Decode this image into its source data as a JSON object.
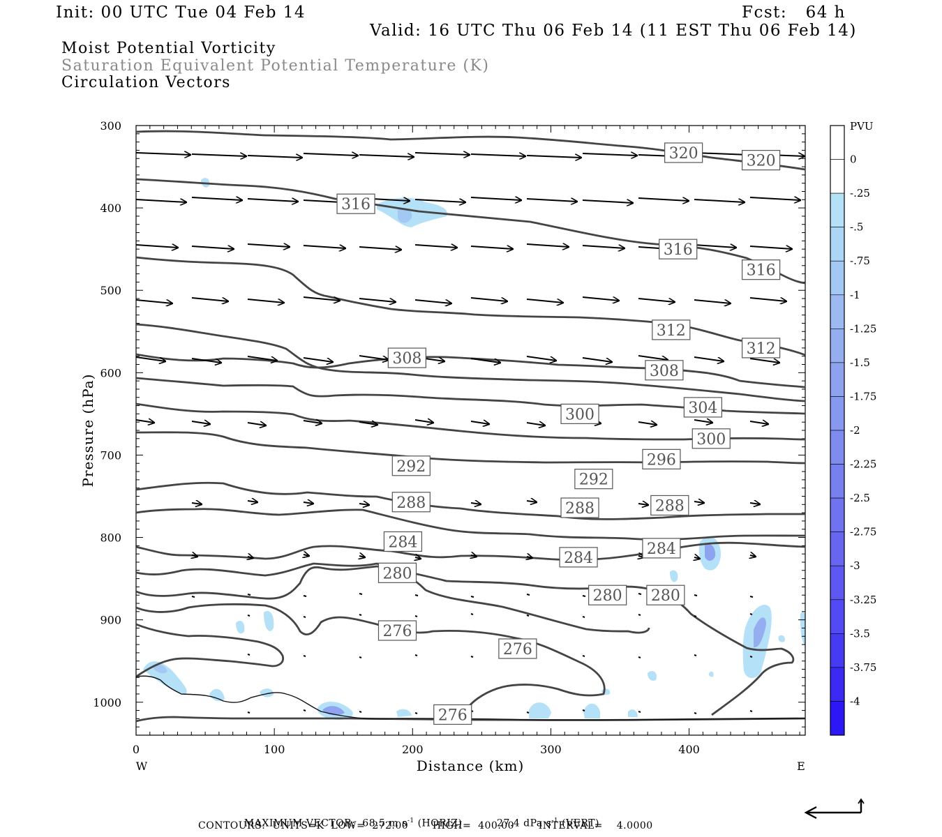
{
  "header": {
    "init": "Init: 00 UTC Tue 04 Feb 14",
    "fcst": "Fcst:   64 h",
    "valid": "Valid: 16 UTC Thu 06 Feb 14 (11 EST Thu 06 Feb 14)"
  },
  "titles": {
    "line1": "Moist Potential Vorticity",
    "line2": "Saturation Equivalent Potential Temperature (K)",
    "line3": "Circulation Vectors"
  },
  "footer": {
    "max_vector_label": "MAXIMUM VECTOR:",
    "max_horiz": "68.5 m s",
    "horiz_unit": "(HORIZ)",
    "max_vert": "27.4 dPa s",
    "vert_unit": "(VERT)",
    "exp": "-1",
    "contours": "CONTOURS:  UNITS=K  LOW=  272.00       HIGH=  400.00       INTERVAL=    4.0000"
  },
  "chart_data": {
    "type": "cross-section",
    "xlabel": "Distance (km)",
    "ylabel": "Pressure (hPa)",
    "x_left_label": "W",
    "x_right_label": "E",
    "xlim": [
      0,
      484
    ],
    "ylim": [
      300,
      1040
    ],
    "x_ticks": [
      "0",
      "100",
      "200",
      "300",
      "400"
    ],
    "y_ticks": [
      "300",
      "400",
      "500",
      "600",
      "700",
      "800",
      "900",
      "1000"
    ],
    "colorbar": {
      "unit": "PVU",
      "labels": [
        "0",
        "-.25",
        "-.5",
        "-.75",
        "-1",
        "-1.25",
        "-1.5",
        "-1.75",
        "-2",
        "-2.25",
        "-2.5",
        "-2.75",
        "-3",
        "-3.25",
        "-3.5",
        "-3.75",
        "-4"
      ],
      "colors": [
        "#ffffff",
        "#ffffff",
        "#b4e1f7",
        "#acd6f5",
        "#a3c8f3",
        "#9cbaf1",
        "#95aeef",
        "#8ea3ef",
        "#8698ef",
        "#7f8cef",
        "#7780ef",
        "#6f73ef",
        "#6666f0",
        "#5c58f1",
        "#524af2",
        "#463af3",
        "#3a2af4",
        "#2c18f6"
      ]
    },
    "contour_labels": [
      {
        "value": "320",
        "x": 396,
        "p": 333
      },
      {
        "value": "320",
        "x": 452,
        "p": 342
      },
      {
        "value": "316",
        "x": 159,
        "p": 395
      },
      {
        "value": "316",
        "x": 392,
        "p": 450
      },
      {
        "value": "316",
        "x": 452,
        "p": 475
      },
      {
        "value": "312",
        "x": 387,
        "p": 548
      },
      {
        "value": "312",
        "x": 452,
        "p": 570
      },
      {
        "value": "308",
        "x": 196,
        "p": 582
      },
      {
        "value": "308",
        "x": 382,
        "p": 597
      },
      {
        "value": "304",
        "x": 410,
        "p": 642
      },
      {
        "value": "300",
        "x": 321,
        "p": 650
      },
      {
        "value": "300",
        "x": 416,
        "p": 680
      },
      {
        "value": "296",
        "x": 380,
        "p": 705
      },
      {
        "value": "292",
        "x": 199,
        "p": 713
      },
      {
        "value": "292",
        "x": 331,
        "p": 729
      },
      {
        "value": "288",
        "x": 199,
        "p": 757
      },
      {
        "value": "288",
        "x": 386,
        "p": 761
      },
      {
        "value": "288",
        "x": 321,
        "p": 764
      },
      {
        "value": "284",
        "x": 193,
        "p": 805
      },
      {
        "value": "284",
        "x": 380,
        "p": 813
      },
      {
        "value": "284",
        "x": 320,
        "p": 824
      },
      {
        "value": "280",
        "x": 189,
        "p": 843
      },
      {
        "value": "280",
        "x": 341,
        "p": 870
      },
      {
        "value": "280",
        "x": 383,
        "p": 870
      },
      {
        "value": "276",
        "x": 189,
        "p": 913
      },
      {
        "value": "276",
        "x": 276,
        "p": 935
      },
      {
        "value": "276",
        "x": 229,
        "p": 1015
      }
    ]
  }
}
